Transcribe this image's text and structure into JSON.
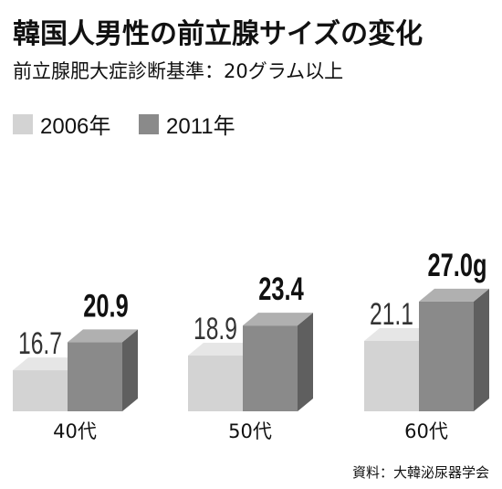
{
  "title": "韓国人男性の前立腺サイズの変化",
  "subtitle": "前立腺肥大症診断基準：20グラム以上",
  "source": "資料：大韓泌尿器学会",
  "colors": {
    "series_2006": "#d3d3d3",
    "series_2011": "#8a8a8a",
    "text": "#111111"
  },
  "chart_data": {
    "type": "bar",
    "categories": [
      "40代",
      "50代",
      "60代"
    ],
    "series": [
      {
        "name": "2006年",
        "values": [
          16.7,
          18.9,
          21.1
        ],
        "labels": [
          "16.7",
          "18.9",
          "21.1"
        ]
      },
      {
        "name": "2011年",
        "values": [
          20.9,
          23.4,
          27.0
        ],
        "labels": [
          "20.9",
          "23.4",
          "27.0g"
        ]
      }
    ],
    "title": "韓国人男性の前立腺サイズの変化",
    "subtitle": "前立腺肥大症診断基準：20グラム以上",
    "legend": "top-left",
    "grid": false
  }
}
